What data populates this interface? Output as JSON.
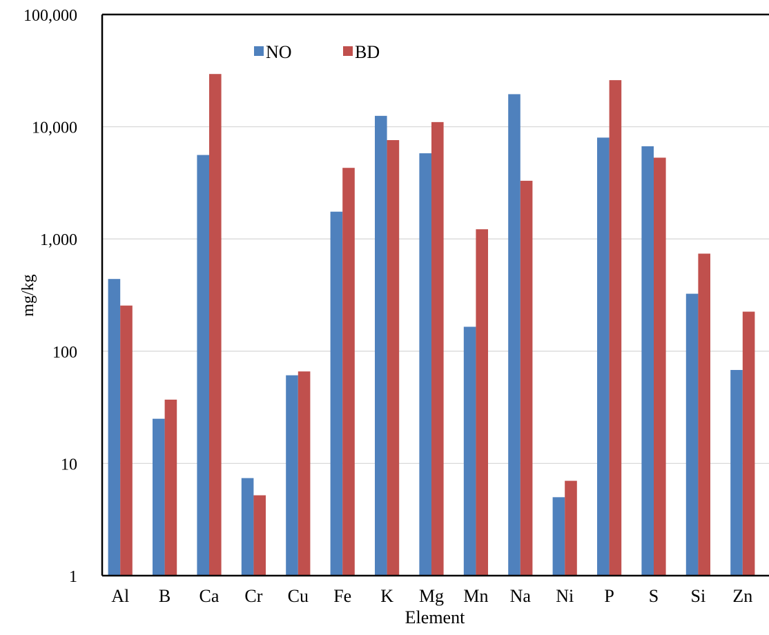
{
  "chart_data": {
    "type": "bar",
    "title": "",
    "xlabel": "Element",
    "ylabel": "mg/kg",
    "yscale": "log",
    "ylim": [
      1,
      100000
    ],
    "grid": "horizontal",
    "legend_position": "top-left",
    "categories": [
      "Al",
      "B",
      "Ca",
      "Cr",
      "Cu",
      "Fe",
      "K",
      "Mg",
      "Mn",
      "Na",
      "Ni",
      "P",
      "S",
      "Si",
      "Zn"
    ],
    "y_tick_labels": [
      "1",
      "10",
      "100",
      "1,000",
      "10,000",
      "100,000"
    ],
    "y_tick_values": [
      1,
      10,
      100,
      1000,
      10000,
      100000
    ],
    "series": [
      {
        "name": "NO",
        "color": "#4f81bd",
        "values": [
          440,
          25,
          5600,
          7.4,
          61,
          1750,
          12500,
          5800,
          165,
          19500,
          5.0,
          8000,
          6700,
          325,
          68
        ]
      },
      {
        "name": "BD",
        "color": "#c0504d",
        "values": [
          255,
          37,
          29500,
          5.2,
          66,
          4300,
          7600,
          11000,
          1220,
          3300,
          7.0,
          26000,
          5300,
          740,
          225
        ]
      }
    ]
  }
}
